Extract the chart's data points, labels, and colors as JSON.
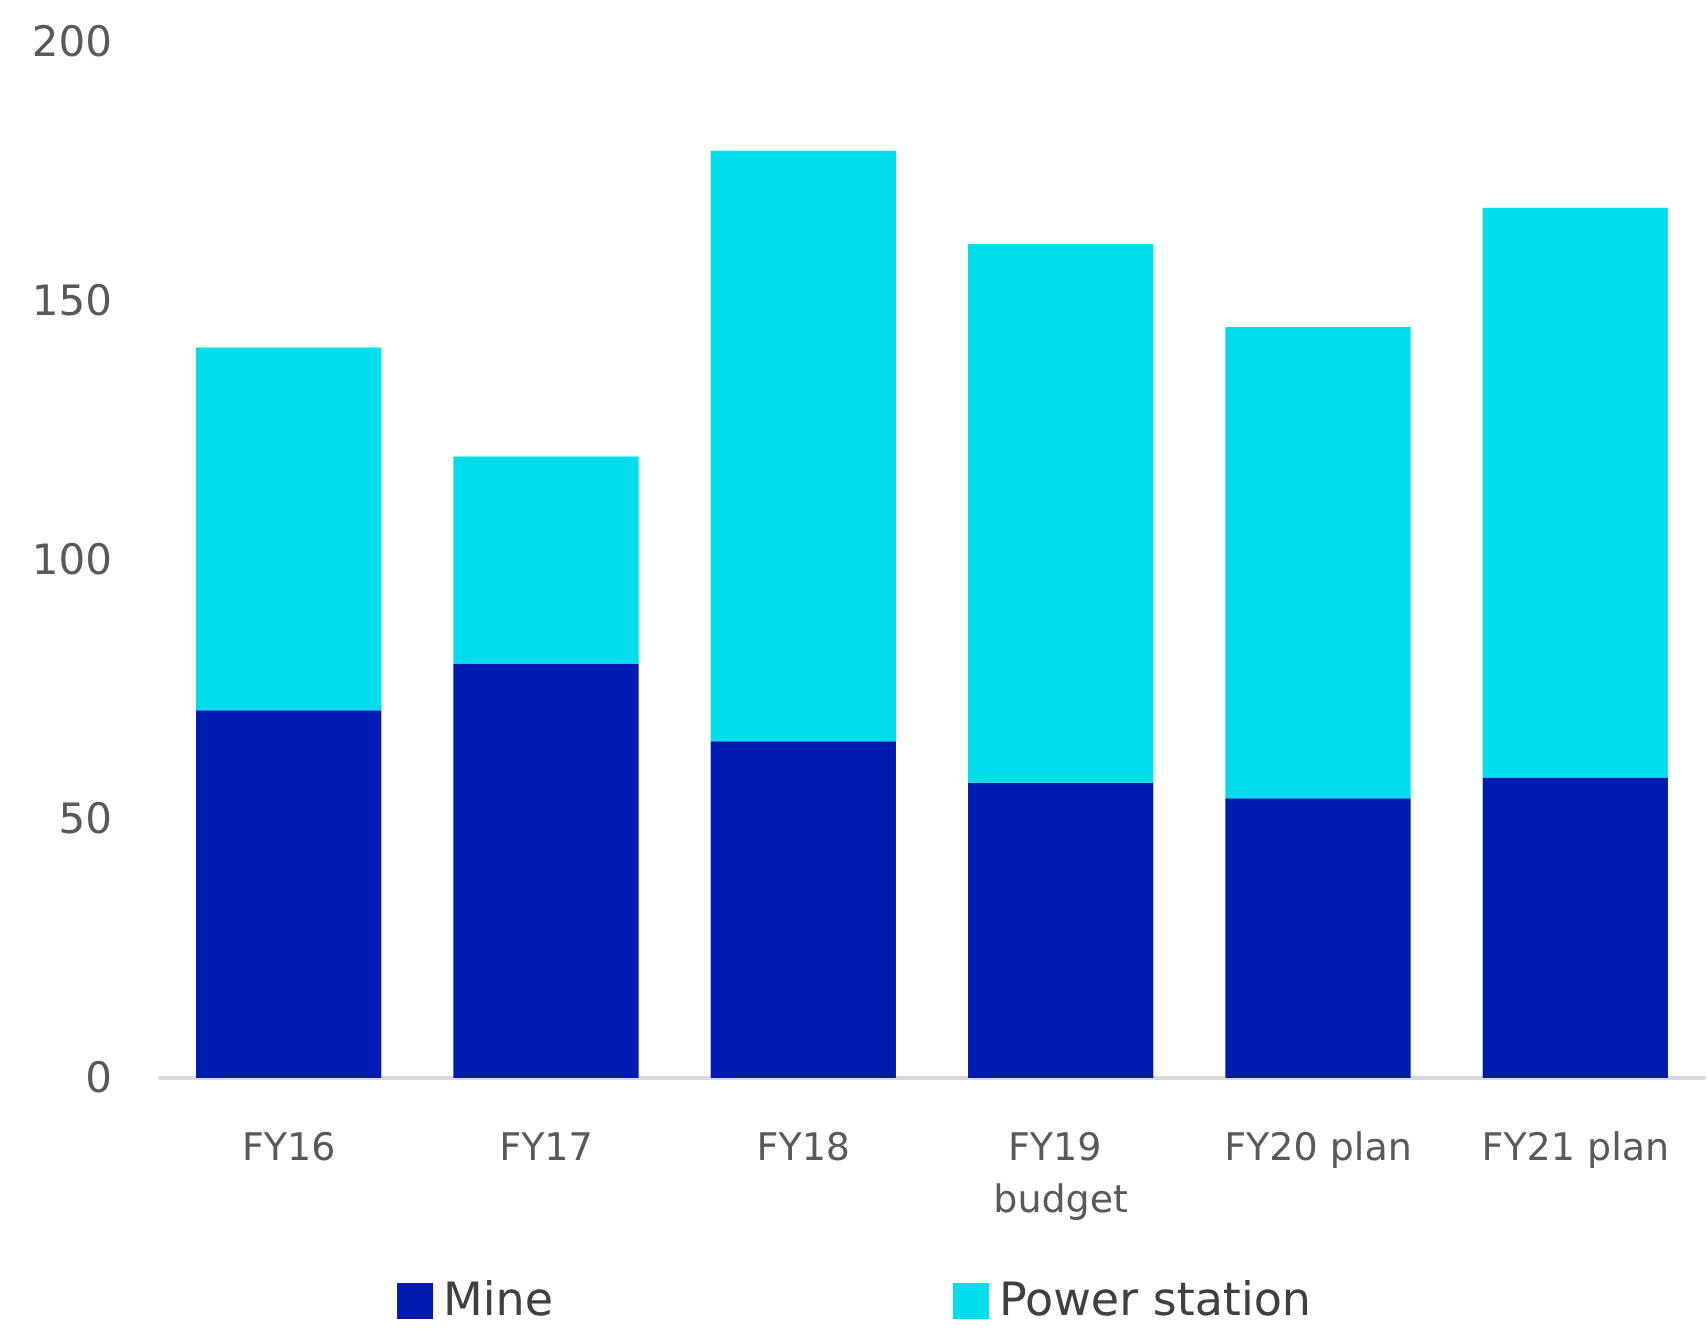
{
  "chart_data": {
    "type": "bar",
    "stacked": true,
    "categories": [
      "FY16",
      "FY17",
      "FY18",
      "FY19 budget",
      "FY20 plan",
      "FY21 plan"
    ],
    "series": [
      {
        "name": "Mine",
        "color": "#001bb0",
        "values": [
          71,
          80,
          65,
          57,
          54,
          58
        ]
      },
      {
        "name": "Power station",
        "color": "#00deeb",
        "values": [
          70,
          40,
          114,
          104,
          91,
          110
        ]
      }
    ],
    "ylim": [
      0,
      200
    ],
    "yticks": [
      0,
      50,
      100,
      150,
      200
    ],
    "grid": false,
    "legend": "bottom"
  }
}
